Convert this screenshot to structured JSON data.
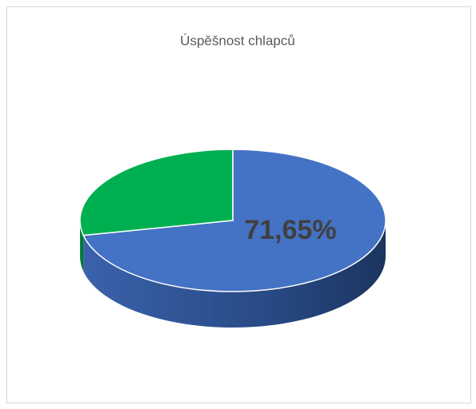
{
  "chart_data": {
    "type": "pie3d",
    "title": "Úspěšnost chlapců",
    "values": [
      71.65,
      28.35
    ],
    "value_labels": [
      "71,65%",
      null
    ],
    "colors": [
      "#4472c4",
      "#00b050"
    ]
  }
}
